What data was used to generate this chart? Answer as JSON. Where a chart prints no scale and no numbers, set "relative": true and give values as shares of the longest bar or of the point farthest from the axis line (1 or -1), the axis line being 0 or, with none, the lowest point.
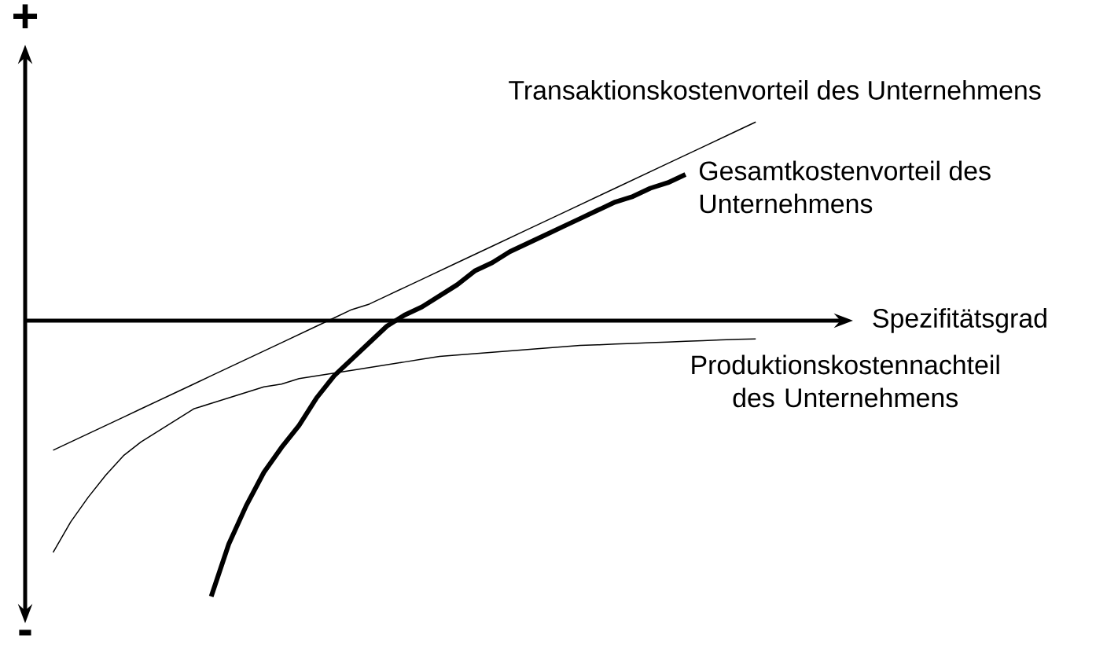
{
  "chart_data": {
    "type": "line",
    "relative": true,
    "xlabel": "Spezifitätsgrad",
    "marker": "none",
    "annotations": [
      "+",
      "-"
    ],
    "categories": [
      null,
      null,
      null,
      null,
      null,
      null,
      null,
      null,
      null,
      null,
      null,
      null,
      null,
      null,
      null,
      null,
      null,
      null,
      null,
      null,
      null,
      null,
      null,
      null,
      null,
      null,
      null,
      null,
      null,
      null,
      null,
      null,
      null,
      null,
      null,
      null,
      null,
      null,
      null,
      null,
      null
    ],
    "series": [
      {
        "name": "Transaktionskostenvorteil des Unternehmens",
        "color": "#000000",
        "values": [
          -0.47,
          -0.44,
          -0.41,
          -0.38,
          -0.35,
          -0.32,
          -0.29,
          -0.26,
          -0.23,
          -0.2,
          -0.17,
          -0.14,
          -0.11,
          -0.08,
          -0.05,
          -0.02,
          0.01,
          0.04,
          0.06,
          0.09,
          0.12,
          0.15,
          0.18,
          0.21,
          0.24,
          0.27,
          0.3,
          0.33,
          0.36,
          0.39,
          0.42,
          0.45,
          0.48,
          0.51,
          0.54,
          0.57,
          0.6,
          0.63,
          0.66,
          0.69,
          0.72
        ]
      },
      {
        "name": "Gesamtkostenvorteil des Unternehmens",
        "color": "#000000",
        "values": [
          null,
          null,
          null,
          null,
          null,
          null,
          null,
          null,
          null,
          -1.0,
          -0.81,
          -0.67,
          -0.55,
          -0.46,
          -0.38,
          -0.28,
          -0.2,
          -0.14,
          -0.08,
          -0.02,
          0.02,
          0.05,
          0.09,
          0.13,
          0.18,
          0.21,
          0.25,
          0.28,
          0.31,
          0.34,
          0.37,
          0.4,
          0.43,
          0.45,
          0.48,
          0.5,
          0.53,
          null,
          null,
          null,
          null
        ]
      },
      {
        "name": "Produktionskostennachteil des Unternehmens",
        "color": "#000000",
        "values": [
          -0.84,
          -0.73,
          -0.64,
          -0.56,
          -0.49,
          -0.44,
          -0.4,
          -0.36,
          -0.32,
          -0.3,
          -0.28,
          -0.26,
          -0.24,
          -0.23,
          -0.21,
          -0.2,
          -0.19,
          -0.18,
          -0.17,
          -0.16,
          -0.15,
          -0.14,
          -0.13,
          -0.125,
          -0.12,
          -0.115,
          -0.11,
          -0.105,
          -0.1,
          -0.095,
          -0.09,
          -0.088,
          -0.085,
          -0.083,
          -0.08,
          -0.078,
          -0.075,
          -0.073,
          -0.07,
          -0.068,
          -0.066
        ]
      }
    ]
  }
}
